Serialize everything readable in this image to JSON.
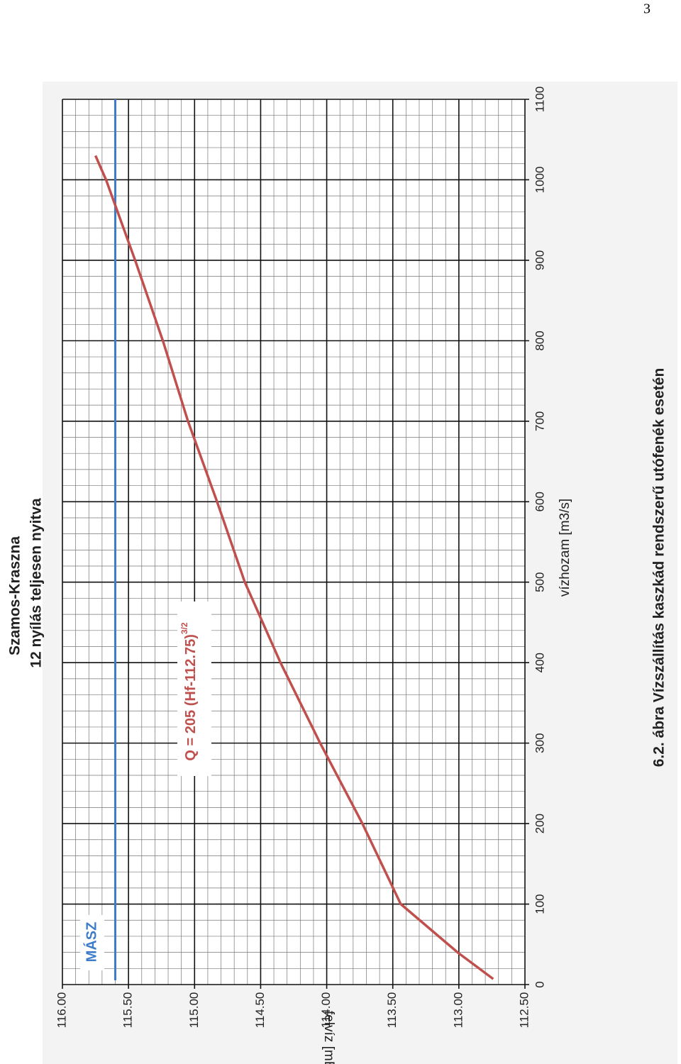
{
  "page_number": "3",
  "caption": "6.2. ábra Vízszállítás kaszkád rendszerű utófenék esetén",
  "chart_data": {
    "type": "line",
    "title": "Szamos-Kraszna",
    "subtitle": "12 nyílás teljesen nyitva",
    "x_label": "vízhozam  [m3/s]",
    "y_label": "felvíz  [mBf]",
    "annotation": {
      "text": "Q = 205 (Hf-112.75)",
      "superscript": "3/2"
    },
    "x": [
      7,
      40,
      100,
      200,
      300,
      400,
      500,
      600,
      700,
      800,
      900,
      1000,
      1030
    ],
    "series": [
      {
        "color": "#c0504d",
        "values": [
          112.74,
          113.01,
          113.44,
          113.73,
          114.05,
          114.35,
          114.62,
          114.83,
          115.05,
          115.24,
          115.45,
          115.67,
          115.75
        ]
      }
    ],
    "reference_lines": [
      {
        "name": "MÁSZ",
        "value": 115.6,
        "color": "#3d7cc9"
      }
    ],
    "xlim": [
      0,
      1100
    ],
    "xticks": [
      0,
      100,
      200,
      300,
      400,
      500,
      600,
      700,
      800,
      900,
      1000,
      1100
    ],
    "ylim": [
      112.5,
      116
    ],
    "yticks": [
      {
        "value": 112.5,
        "label": "112.50"
      },
      {
        "value": 113,
        "label": "113.00"
      },
      {
        "value": 113.5,
        "label": "113.50"
      },
      {
        "value": 114,
        "label": "114.00"
      },
      {
        "value": 114.5,
        "label": "114.50"
      },
      {
        "value": 115,
        "label": "115.00"
      },
      {
        "value": 115.5,
        "label": "115.50"
      },
      {
        "value": 116,
        "label": "116.00"
      }
    ],
    "grid": true
  }
}
